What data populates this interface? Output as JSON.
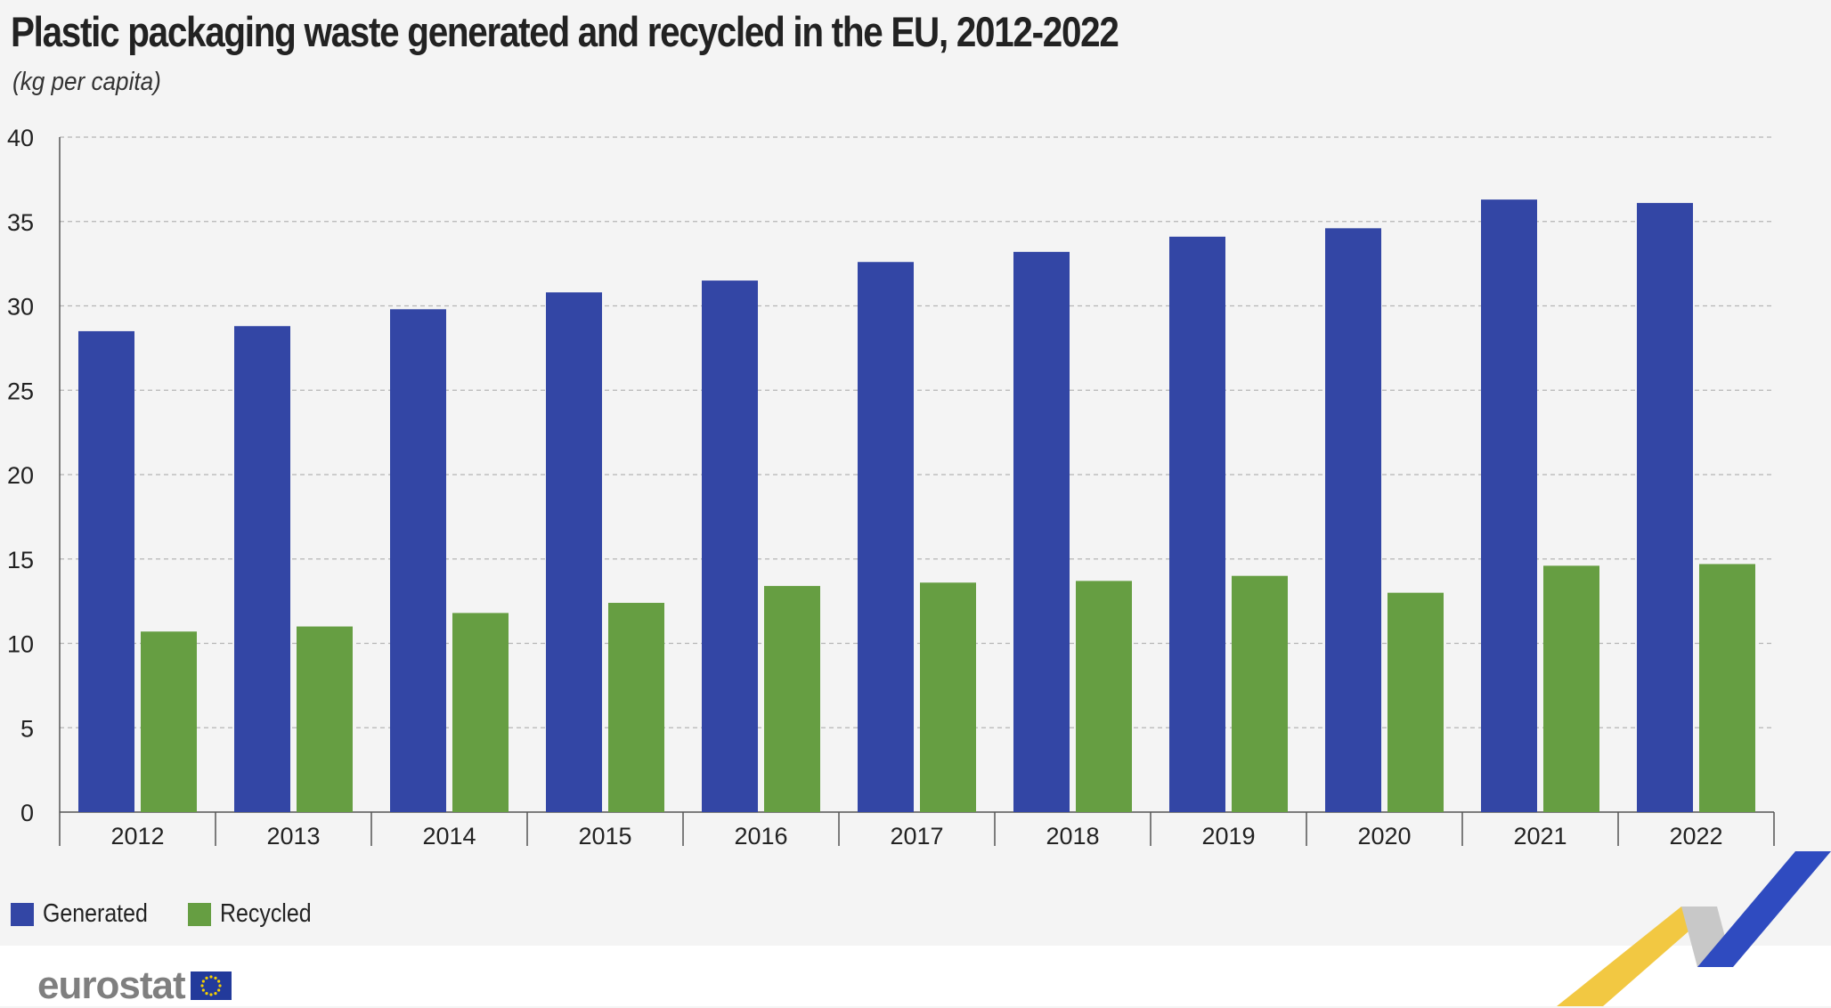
{
  "chart_data": {
    "type": "bar",
    "title": "Plastic packaging waste generated and recycled in the EU, 2012-2022",
    "subtitle": "(kg per capita)",
    "categories": [
      "2012",
      "2013",
      "2014",
      "2015",
      "2016",
      "2017",
      "2018",
      "2019",
      "2020",
      "2021",
      "2022"
    ],
    "series": [
      {
        "name": "Generated",
        "color": "#3346a5",
        "values": [
          28.5,
          28.8,
          29.8,
          30.8,
          31.5,
          32.6,
          33.2,
          34.1,
          34.6,
          36.3,
          36.1
        ]
      },
      {
        "name": "Recycled",
        "color": "#669e42",
        "values": [
          10.7,
          11.0,
          11.8,
          12.4,
          13.4,
          13.6,
          13.7,
          14.0,
          13.0,
          14.6,
          14.7
        ]
      }
    ],
    "ylim": [
      0,
      40
    ],
    "yticks": [
      0,
      5,
      10,
      15,
      20,
      25,
      30,
      35,
      40
    ],
    "grid": true,
    "legend_position": "bottom-left"
  },
  "footer": {
    "logo_text": "eurostat",
    "flag_icon": "eu-flag-icon"
  }
}
